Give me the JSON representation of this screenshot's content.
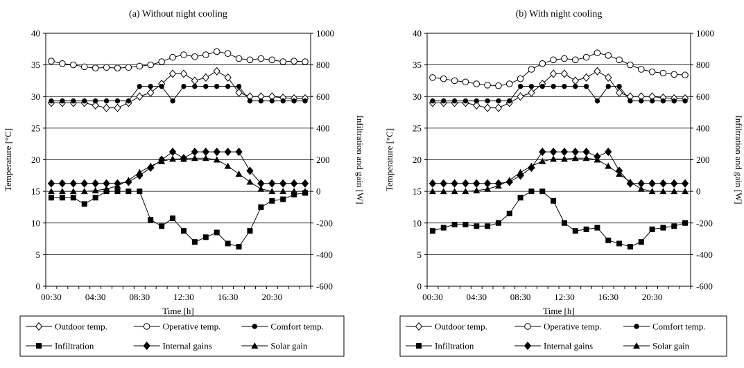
{
  "chart_data": [
    {
      "type": "line",
      "title": "(a) Without night cooling",
      "xlabel": "Time [h]",
      "ylabel": "Temperature [°C]",
      "y2label": "Infiltration and gain [W]",
      "x": [
        "00:30",
        "01:30",
        "02:30",
        "03:30",
        "04:30",
        "05:30",
        "06:30",
        "07:30",
        "08:30",
        "09:30",
        "10:30",
        "11:30",
        "12:30",
        "13:30",
        "14:30",
        "15:30",
        "16:30",
        "17:30",
        "18:30",
        "19:30",
        "20:30",
        "21:30",
        "22:30",
        "23:30"
      ],
      "xticks": [
        "00:30",
        "04:30",
        "08:30",
        "12:30",
        "16:30",
        "20:30"
      ],
      "ylim": [
        0,
        40
      ],
      "yticks": [
        "0",
        "5",
        "10",
        "15",
        "20",
        "25",
        "30",
        "35",
        "40"
      ],
      "y2lim": [
        -600,
        1000
      ],
      "y2ticks": [
        "-600",
        "-400",
        "-200",
        "0",
        "200",
        "400",
        "600",
        "800",
        "1000"
      ],
      "grid": "horizontal",
      "legend_position": "bottom",
      "series": [
        {
          "name": "Outdoor temp.",
          "axis": "left",
          "marker": "diamond-open",
          "values": [
            29,
            29,
            29,
            29,
            28.6,
            28.2,
            28.2,
            29,
            30,
            30.6,
            32,
            33.6,
            33.6,
            32.5,
            33,
            34,
            33,
            30.6,
            30,
            30,
            30,
            29.8,
            29.7,
            29.7
          ]
        },
        {
          "name": "Operative temp.",
          "axis": "left",
          "marker": "circle-open",
          "values": [
            35.6,
            35.2,
            35,
            34.7,
            34.5,
            34.6,
            34.5,
            34.6,
            34.8,
            35,
            35.5,
            36.2,
            36.6,
            36.3,
            36.6,
            37.1,
            36.8,
            36,
            35.8,
            36,
            35.8,
            35.5,
            35.6,
            35.5
          ]
        },
        {
          "name": "Comfort temp.",
          "axis": "left",
          "marker": "circle-filled",
          "values": [
            29.3,
            29.3,
            29.3,
            29.3,
            29.3,
            29.3,
            29.3,
            29.3,
            31.6,
            31.6,
            31.6,
            29.3,
            31.6,
            31.6,
            31.6,
            31.6,
            31.6,
            31.6,
            29.3,
            29.3,
            29.3,
            29.3,
            29.3,
            29.3
          ]
        },
        {
          "name": "Infiltration",
          "axis": "right",
          "marker": "square-filled",
          "values": [
            -40,
            -40,
            -40,
            -80,
            -40,
            0,
            0,
            0,
            0,
            -180,
            -220,
            -170,
            -250,
            -320,
            -290,
            -260,
            -330,
            -350,
            -250,
            -100,
            -60,
            -50,
            -20,
            -10
          ]
        },
        {
          "name": "Internal gains",
          "axis": "right",
          "marker": "diamond-filled",
          "values": [
            50,
            50,
            50,
            50,
            50,
            50,
            50,
            60,
            100,
            150,
            200,
            250,
            210,
            250,
            250,
            250,
            250,
            250,
            130,
            50,
            50,
            50,
            50,
            50
          ]
        },
        {
          "name": "Solar gain",
          "axis": "right",
          "marker": "triangle-filled",
          "values": [
            0,
            0,
            0,
            0,
            5,
            15,
            35,
            70,
            120,
            160,
            190,
            205,
            205,
            210,
            210,
            200,
            160,
            110,
            60,
            15,
            0,
            0,
            0,
            0
          ]
        }
      ]
    },
    {
      "type": "line",
      "title": "(b) With night cooling",
      "xlabel": "Time [h]",
      "ylabel": "Temperature [°C]",
      "y2label": "Infiltration and gain [W]",
      "x": [
        "00:30",
        "01:30",
        "02:30",
        "03:30",
        "04:30",
        "05:30",
        "06:30",
        "07:30",
        "08:30",
        "09:30",
        "10:30",
        "11:30",
        "12:30",
        "13:30",
        "14:30",
        "15:30",
        "16:30",
        "17:30",
        "18:30",
        "19:30",
        "20:30",
        "21:30",
        "22:30",
        "23:30"
      ],
      "xticks": [
        "00:30",
        "04:30",
        "08:30",
        "12:30",
        "16:30",
        "20:30"
      ],
      "ylim": [
        0,
        40
      ],
      "yticks": [
        "0",
        "5",
        "10",
        "15",
        "20",
        "25",
        "30",
        "35",
        "40"
      ],
      "y2lim": [
        -600,
        1000
      ],
      "y2ticks": [
        "-600",
        "-400",
        "-200",
        "0",
        "200",
        "400",
        "600",
        "800",
        "1000"
      ],
      "grid": "horizontal",
      "legend_position": "bottom",
      "series": [
        {
          "name": "Outdoor temp.",
          "axis": "left",
          "marker": "diamond-open",
          "values": [
            29,
            29,
            29,
            29,
            28.6,
            28.2,
            28.2,
            29,
            30,
            30.6,
            32,
            33.6,
            33.6,
            32.5,
            33,
            34,
            33,
            30.6,
            30,
            30,
            30,
            29.8,
            29.7,
            29.7
          ]
        },
        {
          "name": "Operative temp.",
          "axis": "left",
          "marker": "circle-open",
          "values": [
            33,
            32.8,
            32.5,
            32.3,
            32,
            31.8,
            31.7,
            32,
            32.8,
            34.3,
            35.2,
            35.8,
            36,
            35.8,
            36.2,
            36.9,
            36.5,
            35.8,
            35,
            34.3,
            33.9,
            33.7,
            33.5,
            33.4
          ]
        },
        {
          "name": "Comfort temp.",
          "axis": "left",
          "marker": "circle-filled",
          "values": [
            29.3,
            29.3,
            29.3,
            29.3,
            29.3,
            29.3,
            29.3,
            29.3,
            31.6,
            31.6,
            31.6,
            31.6,
            31.6,
            31.6,
            31.6,
            29.3,
            31.6,
            31.6,
            29.3,
            29.3,
            29.3,
            29.3,
            29.3,
            29.3
          ]
        },
        {
          "name": "Infiltration",
          "axis": "right",
          "marker": "square-filled",
          "values": [
            -250,
            -230,
            -210,
            -210,
            -220,
            -220,
            -200,
            -140,
            -40,
            0,
            0,
            -60,
            -200,
            -250,
            -240,
            -230,
            -310,
            -330,
            -350,
            -320,
            -240,
            -230,
            -220,
            -200
          ]
        },
        {
          "name": "Internal gains",
          "axis": "right",
          "marker": "diamond-filled",
          "values": [
            50,
            50,
            50,
            50,
            50,
            50,
            50,
            60,
            100,
            150,
            250,
            250,
            250,
            250,
            250,
            220,
            250,
            130,
            50,
            50,
            50,
            50,
            50,
            50
          ]
        },
        {
          "name": "Solar gain",
          "axis": "right",
          "marker": "triangle-filled",
          "values": [
            0,
            0,
            0,
            0,
            5,
            15,
            35,
            70,
            120,
            160,
            190,
            205,
            205,
            210,
            210,
            200,
            160,
            110,
            60,
            15,
            0,
            0,
            0,
            0
          ]
        }
      ]
    }
  ]
}
